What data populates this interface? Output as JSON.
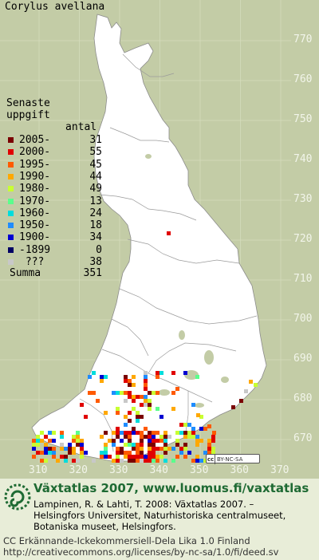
{
  "species": "Corylus avellana",
  "legend": {
    "heading_line1": "Senaste",
    "heading_line2": "uppgift",
    "count_header": "antal",
    "rows": [
      {
        "label": "2005-",
        "count": "31",
        "color": "#7a0000"
      },
      {
        "label": "2000-",
        "count": "55",
        "color": "#e00000"
      },
      {
        "label": "1995-",
        "count": "45",
        "color": "#ff5a00"
      },
      {
        "label": "1990-",
        "count": "44",
        "color": "#ffa800"
      },
      {
        "label": "1980-",
        "count": "49",
        "color": "#c8ff32"
      },
      {
        "label": "1970-",
        "count": "13",
        "color": "#5aff8c"
      },
      {
        "label": "1960-",
        "count": "24",
        "color": "#00dcdc"
      },
      {
        "label": "1950-",
        "count": "18",
        "color": "#1e8cff"
      },
      {
        "label": "1900-",
        "count": "34",
        "color": "#0000d2"
      },
      {
        "label": "-1899",
        "count": "0",
        "color": "#000064"
      },
      {
        "label": " ???",
        "count": "38",
        "color": "#c8c8c8"
      }
    ],
    "summa_label": "Summa",
    "summa_count": "351"
  },
  "axes": {
    "northing_ticks": [
      "770",
      "760",
      "750",
      "740",
      "730",
      "720",
      "710",
      "700",
      "690",
      "680",
      "670"
    ],
    "easting_ticks": [
      "310",
      "320",
      "330",
      "340",
      "350",
      "360",
      "370"
    ]
  },
  "license_badge": {
    "left": "cc",
    "right": "BY-NC-SA"
  },
  "footer": {
    "title": "Växtatlas 2007, www.luomus.fi/vaxtatlas",
    "ref_line1": "Lampinen, R. & Lahti, T. 2008: Växtatlas 2007. –",
    "ref_line2": "Helsingfors Universitet, Naturhistoriska centralmuseet,",
    "ref_line3": "Botaniska museet, Helsingfors.",
    "license_line1": "CC Erkännande-Ickekommersiell-Dela Lika 1.0 Finland",
    "license_line2": "http://creativecommons.org/licenses/by-nc-sa/1.0/fi/deed.sv"
  },
  "colors": {
    "land": "#ffffff",
    "sea": "#c3cca6",
    "grid": "#d4dcbc",
    "footer_title": "#1e6a33"
  }
}
